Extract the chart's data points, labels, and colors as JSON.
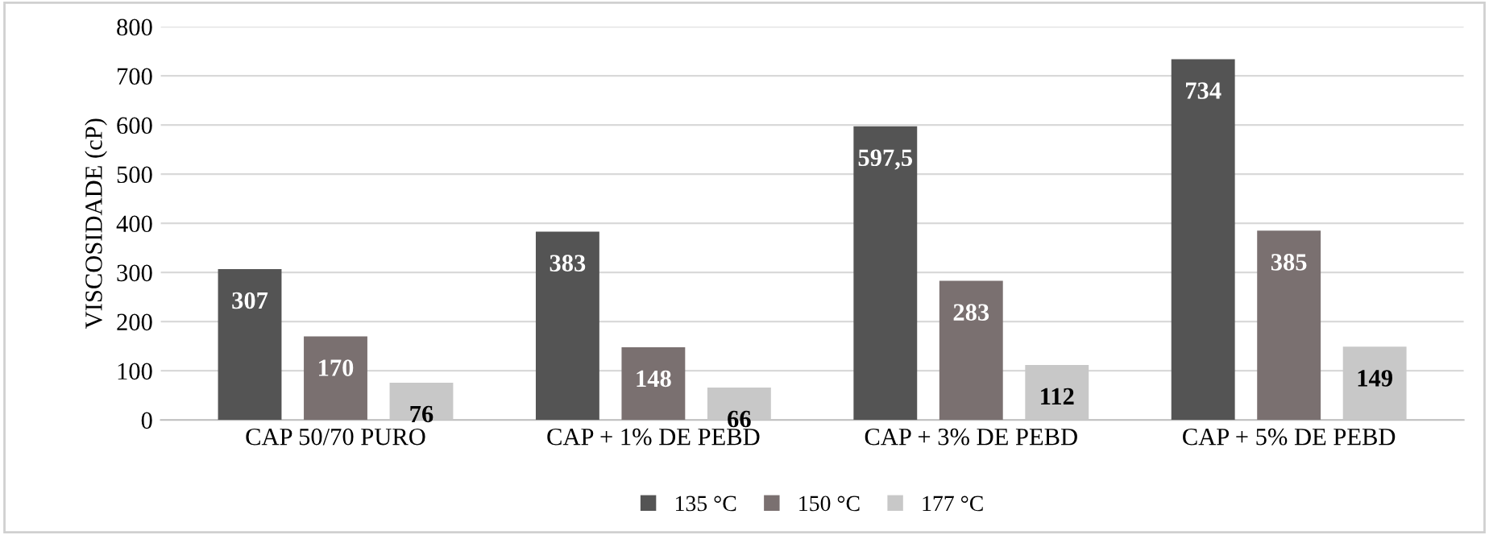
{
  "chart_data": {
    "type": "bar",
    "ylabel": "VISCOSIDADE (cP)",
    "categories": [
      "CAP 50/70 PURO",
      "CAP + 1% DE PEBD",
      "CAP + 3% DE PEBD",
      "CAP + 5% DE PEBD"
    ],
    "series": [
      {
        "name": "135 °C",
        "color": "#545454",
        "values": [
          307,
          383,
          597.5,
          734
        ],
        "value_labels": [
          "307",
          "383",
          "597,5",
          "734"
        ]
      },
      {
        "name": "150 °C",
        "color": "#7a7070",
        "values": [
          170,
          148,
          283,
          385
        ],
        "value_labels": [
          "170",
          "148",
          "283",
          "385"
        ]
      },
      {
        "name": "177 °C",
        "color": "#c8c8c8",
        "values": [
          76,
          66,
          112,
          149
        ],
        "value_labels": [
          "76",
          "66",
          "112",
          "149"
        ]
      }
    ],
    "ylim": [
      0,
      800
    ],
    "yticks": [
      0,
      100,
      200,
      300,
      400,
      500,
      600,
      700,
      800
    ],
    "grid": "y",
    "legend": "bottom"
  }
}
